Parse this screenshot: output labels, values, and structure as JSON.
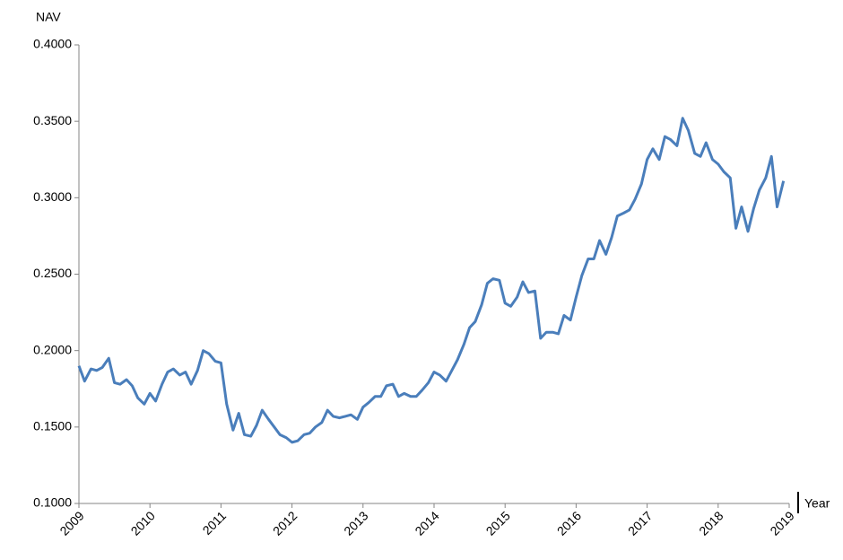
{
  "chart_data": {
    "type": "line",
    "y_label": "NAV",
    "x_label": "Year",
    "x": [
      2009,
      2009.08,
      2009.17,
      2009.25,
      2009.33,
      2009.42,
      2009.5,
      2009.58,
      2009.67,
      2009.75,
      2009.83,
      2009.92,
      2010,
      2010.08,
      2010.17,
      2010.25,
      2010.33,
      2010.42,
      2010.5,
      2010.58,
      2010.67,
      2010.75,
      2010.83,
      2010.92,
      2011,
      2011.08,
      2011.17,
      2011.25,
      2011.33,
      2011.42,
      2011.5,
      2011.58,
      2011.67,
      2011.75,
      2011.83,
      2011.92,
      2012,
      2012.08,
      2012.17,
      2012.25,
      2012.33,
      2012.42,
      2012.5,
      2012.58,
      2012.67,
      2012.75,
      2012.83,
      2012.92,
      2013,
      2013.08,
      2013.17,
      2013.25,
      2013.33,
      2013.42,
      2013.5,
      2013.58,
      2013.67,
      2013.75,
      2013.83,
      2013.92,
      2014,
      2014.08,
      2014.17,
      2014.25,
      2014.33,
      2014.42,
      2014.5,
      2014.58,
      2014.67,
      2014.75,
      2014.83,
      2014.92,
      2015,
      2015.08,
      2015.17,
      2015.25,
      2015.33,
      2015.42,
      2015.5,
      2015.58,
      2015.67,
      2015.75,
      2015.83,
      2015.92,
      2016,
      2016.08,
      2016.17,
      2016.25,
      2016.33,
      2016.42,
      2016.5,
      2016.58,
      2016.67,
      2016.75,
      2016.83,
      2016.92,
      2017,
      2017.08,
      2017.17,
      2017.25,
      2017.33,
      2017.42,
      2017.5,
      2017.58,
      2017.67,
      2017.75,
      2017.83,
      2017.92,
      2018,
      2018.08,
      2018.17,
      2018.25,
      2018.33,
      2018.42,
      2018.5,
      2018.58,
      2018.67,
      2018.75,
      2018.83,
      2018.92
    ],
    "series": [
      {
        "name": "NAV",
        "color": "#4a7ebb",
        "values": [
          0.19,
          0.18,
          0.188,
          0.187,
          0.189,
          0.195,
          0.179,
          0.178,
          0.181,
          0.177,
          0.169,
          0.165,
          0.172,
          0.167,
          0.178,
          0.186,
          0.188,
          0.184,
          0.186,
          0.178,
          0.187,
          0.2,
          0.198,
          0.193,
          0.192,
          0.165,
          0.148,
          0.159,
          0.145,
          0.144,
          0.151,
          0.161,
          0.155,
          0.15,
          0.145,
          0.143,
          0.14,
          0.141,
          0.145,
          0.146,
          0.15,
          0.153,
          0.161,
          0.157,
          0.156,
          0.157,
          0.158,
          0.155,
          0.163,
          0.166,
          0.17,
          0.17,
          0.177,
          0.178,
          0.17,
          0.172,
          0.17,
          0.17,
          0.174,
          0.179,
          0.186,
          0.184,
          0.18,
          0.187,
          0.194,
          0.204,
          0.215,
          0.219,
          0.23,
          0.244,
          0.247,
          0.246,
          0.231,
          0.229,
          0.235,
          0.245,
          0.238,
          0.239,
          0.208,
          0.212,
          0.212,
          0.211,
          0.223,
          0.22,
          0.235,
          0.249,
          0.26,
          0.26,
          0.272,
          0.263,
          0.274,
          0.288,
          0.29,
          0.292,
          0.299,
          0.309,
          0.325,
          0.332,
          0.325,
          0.34,
          0.338,
          0.334,
          0.352,
          0.344,
          0.329,
          0.327,
          0.336,
          0.325,
          0.322,
          0.317,
          0.313,
          0.28,
          0.294,
          0.278,
          0.293,
          0.305,
          0.313,
          0.327,
          0.294,
          0.311
        ]
      }
    ],
    "xlim": [
      2009,
      2019
    ],
    "xticks": [
      2009,
      2010,
      2011,
      2012,
      2013,
      2014,
      2015,
      2016,
      2017,
      2018,
      2019
    ],
    "ylim": [
      0.1,
      0.4
    ],
    "yticks": [
      {
        "value": 0.1,
        "label": "0.1000"
      },
      {
        "value": 0.15,
        "label": "0.1500"
      },
      {
        "value": 0.2,
        "label": "0.2000"
      },
      {
        "value": 0.25,
        "label": "0.2500"
      },
      {
        "value": 0.3,
        "label": "0.3000"
      },
      {
        "value": 0.35,
        "label": "0.3500"
      },
      {
        "value": 0.4,
        "label": "0.4000"
      }
    ],
    "grid": false
  }
}
